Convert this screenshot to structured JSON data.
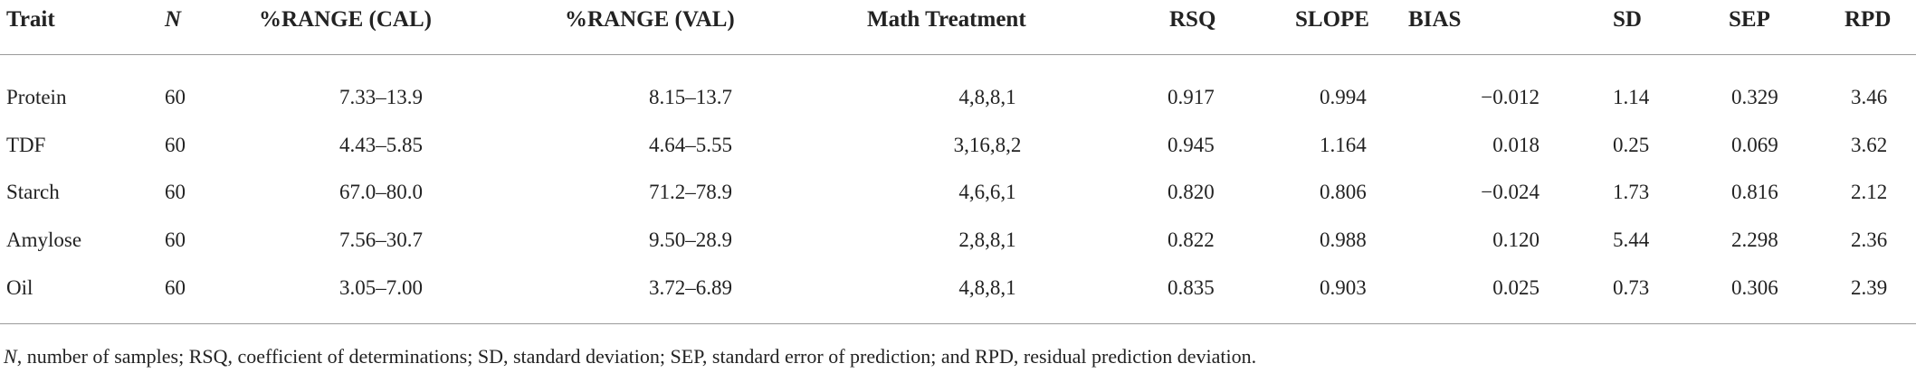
{
  "table": {
    "headers": [
      "Trait",
      "N",
      "%RANGE (CAL)",
      "%RANGE (VAL)",
      "Math Treatment",
      "RSQ",
      "SLOPE",
      "BIAS",
      "SD",
      "SEP",
      "RPD"
    ],
    "rows": [
      [
        "Protein",
        "60",
        "7.33–13.9",
        "8.15–13.7",
        "4,8,8,1",
        "0.917",
        "0.994",
        "−0.012",
        "1.14",
        "0.329",
        "3.46"
      ],
      [
        "TDF",
        "60",
        "4.43–5.85",
        "4.64–5.55",
        "3,16,8,2",
        "0.945",
        "1.164",
        "0.018",
        "0.25",
        "0.069",
        "3.62"
      ],
      [
        "Starch",
        "60",
        "67.0–80.0",
        "71.2–78.9",
        "4,6,6,1",
        "0.820",
        "0.806",
        "−0.024",
        "1.73",
        "0.816",
        "2.12"
      ],
      [
        "Amylose",
        "60",
        "7.56–30.7",
        "9.50–28.9",
        "2,8,8,1",
        "0.822",
        "0.988",
        "0.120",
        "5.44",
        "2.298",
        "2.36"
      ],
      [
        "Oil",
        "60",
        "3.05–7.00",
        "3.72–6.89",
        "4,8,8,1",
        "0.835",
        "0.903",
        "0.025",
        "0.73",
        "0.306",
        "2.39"
      ]
    ]
  },
  "footnote": {
    "abbr": "N",
    "text": ", number of samples; RSQ, coefficient of determinations; SD, standard deviation; SEP, standard error of prediction; and RPD, residual prediction deviation."
  }
}
